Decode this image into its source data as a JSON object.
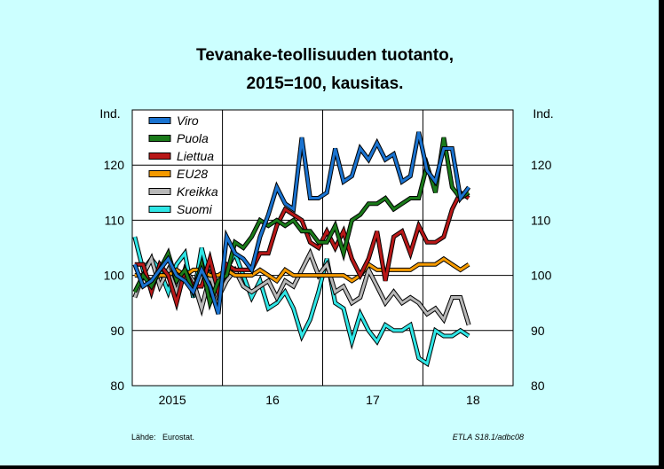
{
  "chart_data": {
    "type": "line",
    "title_line1": "Tevanake-teollisuuden tuotanto,",
    "title_line2": "2015=100, kausitas.",
    "ylabel_left": "Ind.",
    "ylabel_right": "Ind.",
    "ylim": [
      80,
      130
    ],
    "yticks": [
      80,
      90,
      100,
      110,
      120
    ],
    "xlim": [
      2014.6,
      2018.4
    ],
    "xticks": [
      {
        "label": "2015",
        "value": 2015
      },
      {
        "label": "16",
        "value": 2016
      },
      {
        "label": "17",
        "value": 2017
      },
      {
        "label": "18",
        "value": 2018
      }
    ],
    "x_year_boundaries": [
      2015.5,
      2016.5,
      2017.5
    ],
    "x_start": 2014.625,
    "x_step_months": 1,
    "grid": true,
    "legend_position": "top-left",
    "series": [
      {
        "name": "Viro",
        "color": "#1a73d0",
        "values": [
          102,
          98,
          99,
          101,
          103,
          100,
          99,
          97,
          101,
          98,
          93,
          107,
          104,
          103,
          101,
          107,
          111,
          116,
          113,
          112,
          125,
          114,
          114,
          115,
          123,
          117,
          118,
          123,
          121,
          124,
          121,
          122,
          117,
          118,
          126,
          119,
          117,
          123,
          123,
          114,
          116
        ]
      },
      {
        "name": "Puola",
        "color": "#1a7a1a",
        "values": [
          97,
          100,
          98,
          101,
          104,
          99,
          101,
          97,
          102,
          95,
          99,
          100,
          106,
          105,
          107,
          110,
          109,
          110,
          109,
          110,
          108,
          108,
          106,
          106,
          109,
          104,
          110,
          111,
          113,
          113,
          114,
          112,
          113,
          114,
          114,
          120,
          115,
          125,
          116,
          114,
          115
        ]
      },
      {
        "name": "Liettua",
        "color": "#b81818",
        "values": [
          102,
          102,
          97,
          102,
          100,
          95,
          101,
          98,
          98,
          103,
          97,
          102,
          101,
          101,
          101,
          104,
          104,
          109,
          112,
          111,
          110,
          106,
          105,
          108,
          105,
          108,
          103,
          100,
          103,
          108,
          99,
          107,
          108,
          104,
          109,
          106,
          106,
          107,
          112,
          115,
          114
        ]
      },
      {
        "name": "EU28",
        "color": "#f59a00",
        "values": [
          100,
          100,
          99,
          100,
          100,
          101,
          100,
          101,
          101,
          100,
          100,
          101,
          100,
          100,
          100,
          101,
          100,
          99,
          101,
          100,
          100,
          100,
          100,
          100,
          100,
          100,
          99,
          100,
          102,
          101,
          101,
          101,
          101,
          101,
          102,
          102,
          102,
          103,
          102,
          101,
          102
        ]
      },
      {
        "name": "Kreikka",
        "color": "#b8b8b8",
        "values": [
          96,
          100,
          103,
          98,
          101,
          97,
          101,
          99,
          94,
          100,
          96,
          99,
          101,
          98,
          97,
          98,
          99,
          96,
          99,
          98,
          101,
          104,
          100,
          102,
          97,
          98,
          95,
          96,
          101,
          98,
          95,
          97,
          95,
          96,
          95,
          93,
          94,
          92,
          96,
          96,
          91
        ]
      },
      {
        "name": "Suomi",
        "color": "#30e6e6",
        "values": [
          107,
          101,
          103,
          101,
          97,
          102,
          104,
          96,
          105,
          99,
          97,
          101,
          104,
          100,
          96,
          99,
          94,
          95,
          97,
          94,
          89,
          92,
          97,
          103,
          95,
          94,
          88,
          93,
          90,
          88,
          91,
          90,
          90,
          91,
          85,
          84,
          90,
          89,
          89,
          90,
          89
        ]
      }
    ],
    "source_label": "Lähde:",
    "source_value": "Eurostat.",
    "code": "ETLA S18.1/adbc08"
  }
}
